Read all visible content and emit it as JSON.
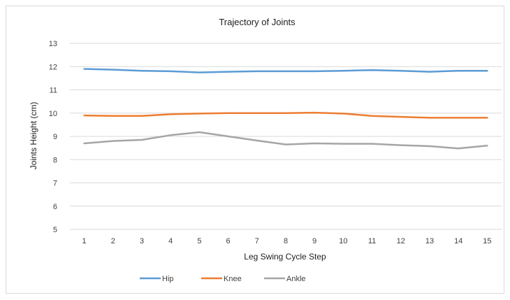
{
  "chart_data": {
    "type": "line",
    "title": "Trajectory of Joints",
    "xlabel": "Leg Swing Cycle Step",
    "ylabel": "Joints Height (cm)",
    "categories": [
      "1",
      "2",
      "3",
      "4",
      "5",
      "6",
      "7",
      "8",
      "9",
      "10",
      "11",
      "12",
      "13",
      "14",
      "15"
    ],
    "ylim": [
      5,
      13
    ],
    "yticks": [
      "5",
      "6",
      "7",
      "8",
      "9",
      "10",
      "11",
      "12",
      "13"
    ],
    "grid": true,
    "legend_position": "bottom",
    "series": [
      {
        "name": "Hip",
        "color": "#5b9bd5",
        "values": [
          11.9,
          11.87,
          11.82,
          11.8,
          11.75,
          11.78,
          11.8,
          11.8,
          11.8,
          11.82,
          11.85,
          11.82,
          11.78,
          11.82,
          11.82
        ]
      },
      {
        "name": "Knee",
        "color": "#ed7d31",
        "values": [
          9.9,
          9.88,
          9.88,
          9.95,
          9.98,
          10.0,
          10.0,
          10.0,
          10.02,
          9.98,
          9.88,
          9.84,
          9.8,
          9.8,
          9.8
        ]
      },
      {
        "name": "Ankle",
        "color": "#a5a5a5",
        "values": [
          8.7,
          8.8,
          8.85,
          9.05,
          9.18,
          9.0,
          8.82,
          8.65,
          8.7,
          8.68,
          8.68,
          8.62,
          8.58,
          8.48,
          8.6
        ]
      }
    ]
  }
}
